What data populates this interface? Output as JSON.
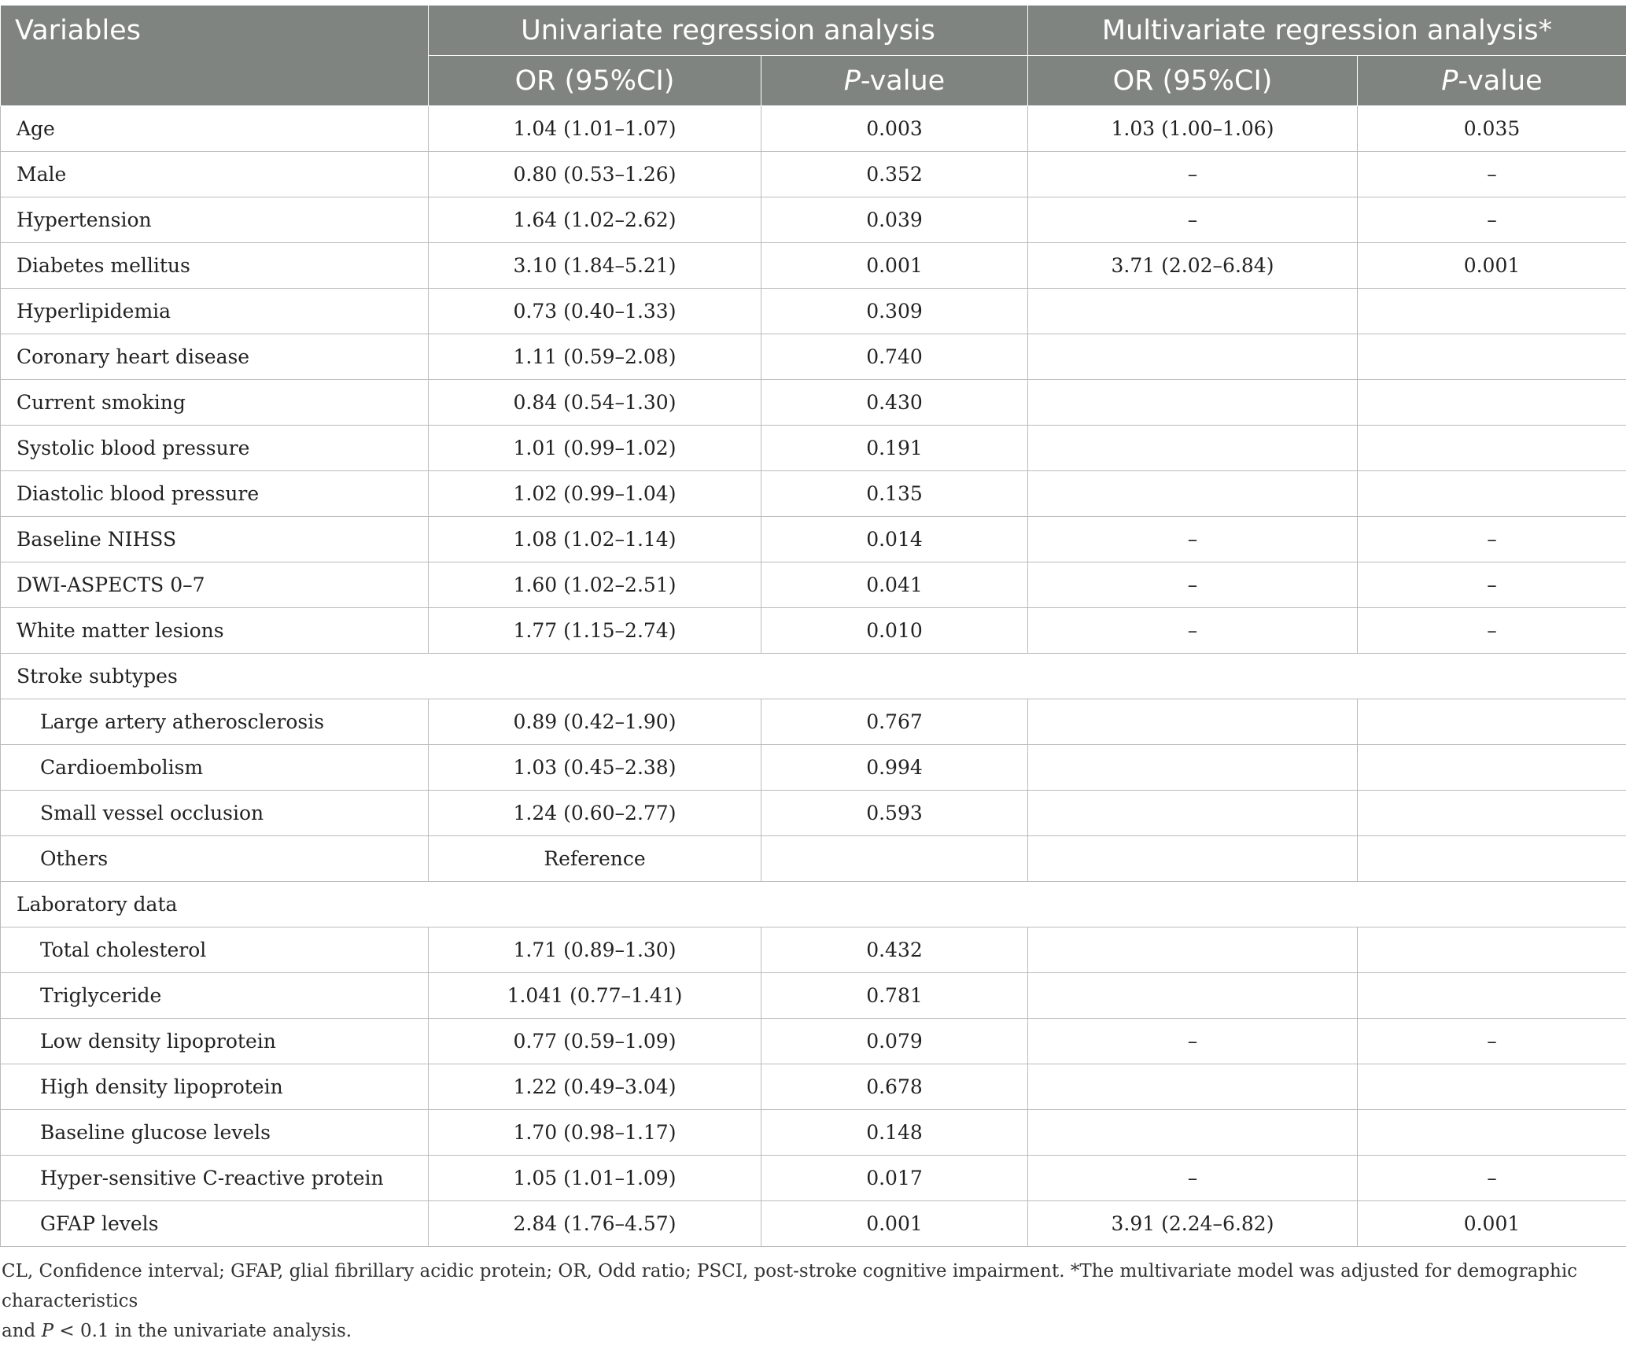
{
  "header": {
    "variables": "Variables",
    "univariate": "Univariate regression analysis",
    "multivariate": "Multivariate regression analysis*",
    "or_label": "OR (95%CI)",
    "p_prefix": "P",
    "p_suffix": "-value"
  },
  "rows": [
    {
      "label": "Age",
      "u_or": "1.04 (1.01–1.07)",
      "u_p": "0.003",
      "m_or": "1.03 (1.00–1.06)",
      "m_p": "0.035"
    },
    {
      "label": "Male",
      "u_or": "0.80 (0.53–1.26)",
      "u_p": "0.352",
      "m_or": "–",
      "m_p": "–"
    },
    {
      "label": "Hypertension",
      "u_or": "1.64 (1.02–2.62)",
      "u_p": "0.039",
      "m_or": "–",
      "m_p": "–"
    },
    {
      "label": "Diabetes mellitus",
      "u_or": "3.10 (1.84–5.21)",
      "u_p": "0.001",
      "m_or": "3.71 (2.02–6.84)",
      "m_p": "0.001"
    },
    {
      "label": "Hyperlipidemia",
      "u_or": "0.73 (0.40–1.33)",
      "u_p": "0.309",
      "m_or": "",
      "m_p": ""
    },
    {
      "label": "Coronary heart disease",
      "u_or": "1.11 (0.59–2.08)",
      "u_p": "0.740",
      "m_or": "",
      "m_p": ""
    },
    {
      "label": "Current smoking",
      "u_or": "0.84 (0.54–1.30)",
      "u_p": "0.430",
      "m_or": "",
      "m_p": ""
    },
    {
      "label": "Systolic blood pressure",
      "u_or": "1.01 (0.99–1.02)",
      "u_p": "0.191",
      "m_or": "",
      "m_p": ""
    },
    {
      "label": "Diastolic blood pressure",
      "u_or": "1.02 (0.99–1.04)",
      "u_p": "0.135",
      "m_or": "",
      "m_p": ""
    },
    {
      "label": "Baseline NIHSS",
      "u_or": "1.08 (1.02–1.14)",
      "u_p": "0.014",
      "m_or": "–",
      "m_p": "–"
    },
    {
      "label": "DWI-ASPECTS 0–7",
      "u_or": "1.60 (1.02–2.51)",
      "u_p": "0.041",
      "m_or": "–",
      "m_p": "–"
    },
    {
      "label": "White matter lesions",
      "u_or": "1.77 (1.15–2.74)",
      "u_p": "0.010",
      "m_or": "–",
      "m_p": "–"
    }
  ],
  "section_stroke": "Stroke subtypes",
  "stroke_rows": [
    {
      "label": "Large artery atherosclerosis",
      "u_or": "0.89 (0.42–1.90)",
      "u_p": "0.767",
      "m_or": "",
      "m_p": ""
    },
    {
      "label": "Cardioembolism",
      "u_or": "1.03 (0.45–2.38)",
      "u_p": "0.994",
      "m_or": "",
      "m_p": ""
    },
    {
      "label": "Small vessel occlusion",
      "u_or": "1.24 (0.60–2.77)",
      "u_p": "0.593",
      "m_or": "",
      "m_p": ""
    },
    {
      "label": "Others",
      "u_or": "Reference",
      "u_p": "",
      "m_or": "",
      "m_p": ""
    }
  ],
  "section_lab": "Laboratory data",
  "lab_rows": [
    {
      "label": "Total cholesterol",
      "u_or": "1.71 (0.89–1.30)",
      "u_p": "0.432",
      "m_or": "",
      "m_p": ""
    },
    {
      "label": "Triglyceride",
      "u_or": "1.041 (0.77–1.41)",
      "u_p": "0.781",
      "m_or": "",
      "m_p": ""
    },
    {
      "label": "Low density lipoprotein",
      "u_or": "0.77 (0.59–1.09)",
      "u_p": "0.079",
      "m_or": "–",
      "m_p": "–"
    },
    {
      "label": "High density lipoprotein",
      "u_or": "1.22 (0.49–3.04)",
      "u_p": "0.678",
      "m_or": "",
      "m_p": ""
    },
    {
      "label": "Baseline glucose levels",
      "u_or": "1.70 (0.98–1.17)",
      "u_p": "0.148",
      "m_or": "",
      "m_p": ""
    },
    {
      "label": "Hyper-sensitive C-reactive protein",
      "u_or": "1.05 (1.01–1.09)",
      "u_p": "0.017",
      "m_or": "–",
      "m_p": "–"
    },
    {
      "label": "GFAP levels",
      "u_or": "2.84 (1.76–4.57)",
      "u_p": "0.001",
      "m_or": "3.91 (2.24–6.82)",
      "m_p": "0.001"
    }
  ],
  "footnote": {
    "line1": "CL, Confidence interval; GFAP, glial fibrillary acidic protein; OR, Odd ratio; PSCI, post-stroke cognitive impairment. *The multivariate model was adjusted for demographic characteristics",
    "line2_prefix": "and ",
    "line2_p": "P",
    "line2_rest": " < 0.1 in the univariate analysis."
  },
  "colors": {
    "header_bg": "#7f8481",
    "header_text": "#ffffff",
    "border": "#b9bcbb"
  }
}
